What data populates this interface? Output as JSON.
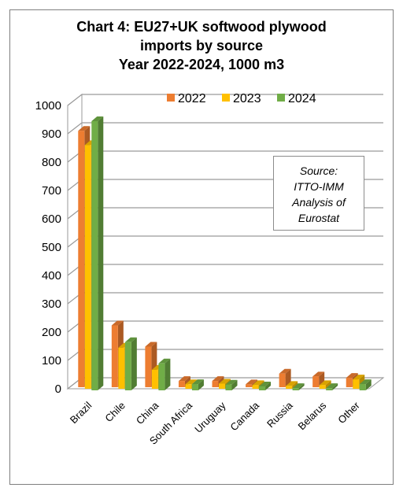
{
  "chart_data": {
    "type": "bar",
    "title": [
      "Chart 4: EU27+UK softwood plywood",
      "imports by source",
      "Year 2022-2024, 1000 m3"
    ],
    "categories": [
      "Brazil",
      "Chile",
      "China",
      "South Africa",
      "Uruguay",
      "Canada",
      "Russia",
      "Belarus",
      "Other"
    ],
    "series": [
      {
        "name": "2022",
        "color": "#ED7D31",
        "values": [
          905,
          218,
          143,
          22,
          22,
          10,
          48,
          38,
          33
        ]
      },
      {
        "name": "2023",
        "color": "#FFC000",
        "values": [
          860,
          145,
          67,
          16,
          18,
          13,
          10,
          13,
          33
        ]
      },
      {
        "name": "2024",
        "color": "#70AD47",
        "values": [
          950,
          170,
          95,
          22,
          20,
          14,
          8,
          8,
          22
        ]
      }
    ],
    "y_ticks": [
      "0",
      "100",
      "200",
      "300",
      "400",
      "500",
      "600",
      "700",
      "800",
      "900",
      "1000"
    ],
    "ylim": [
      0,
      1000
    ],
    "grid": true,
    "legend_position": "top",
    "annotation": [
      "Source:",
      "ITTO-IMM",
      "Analysis of",
      "Eurostat"
    ]
  }
}
